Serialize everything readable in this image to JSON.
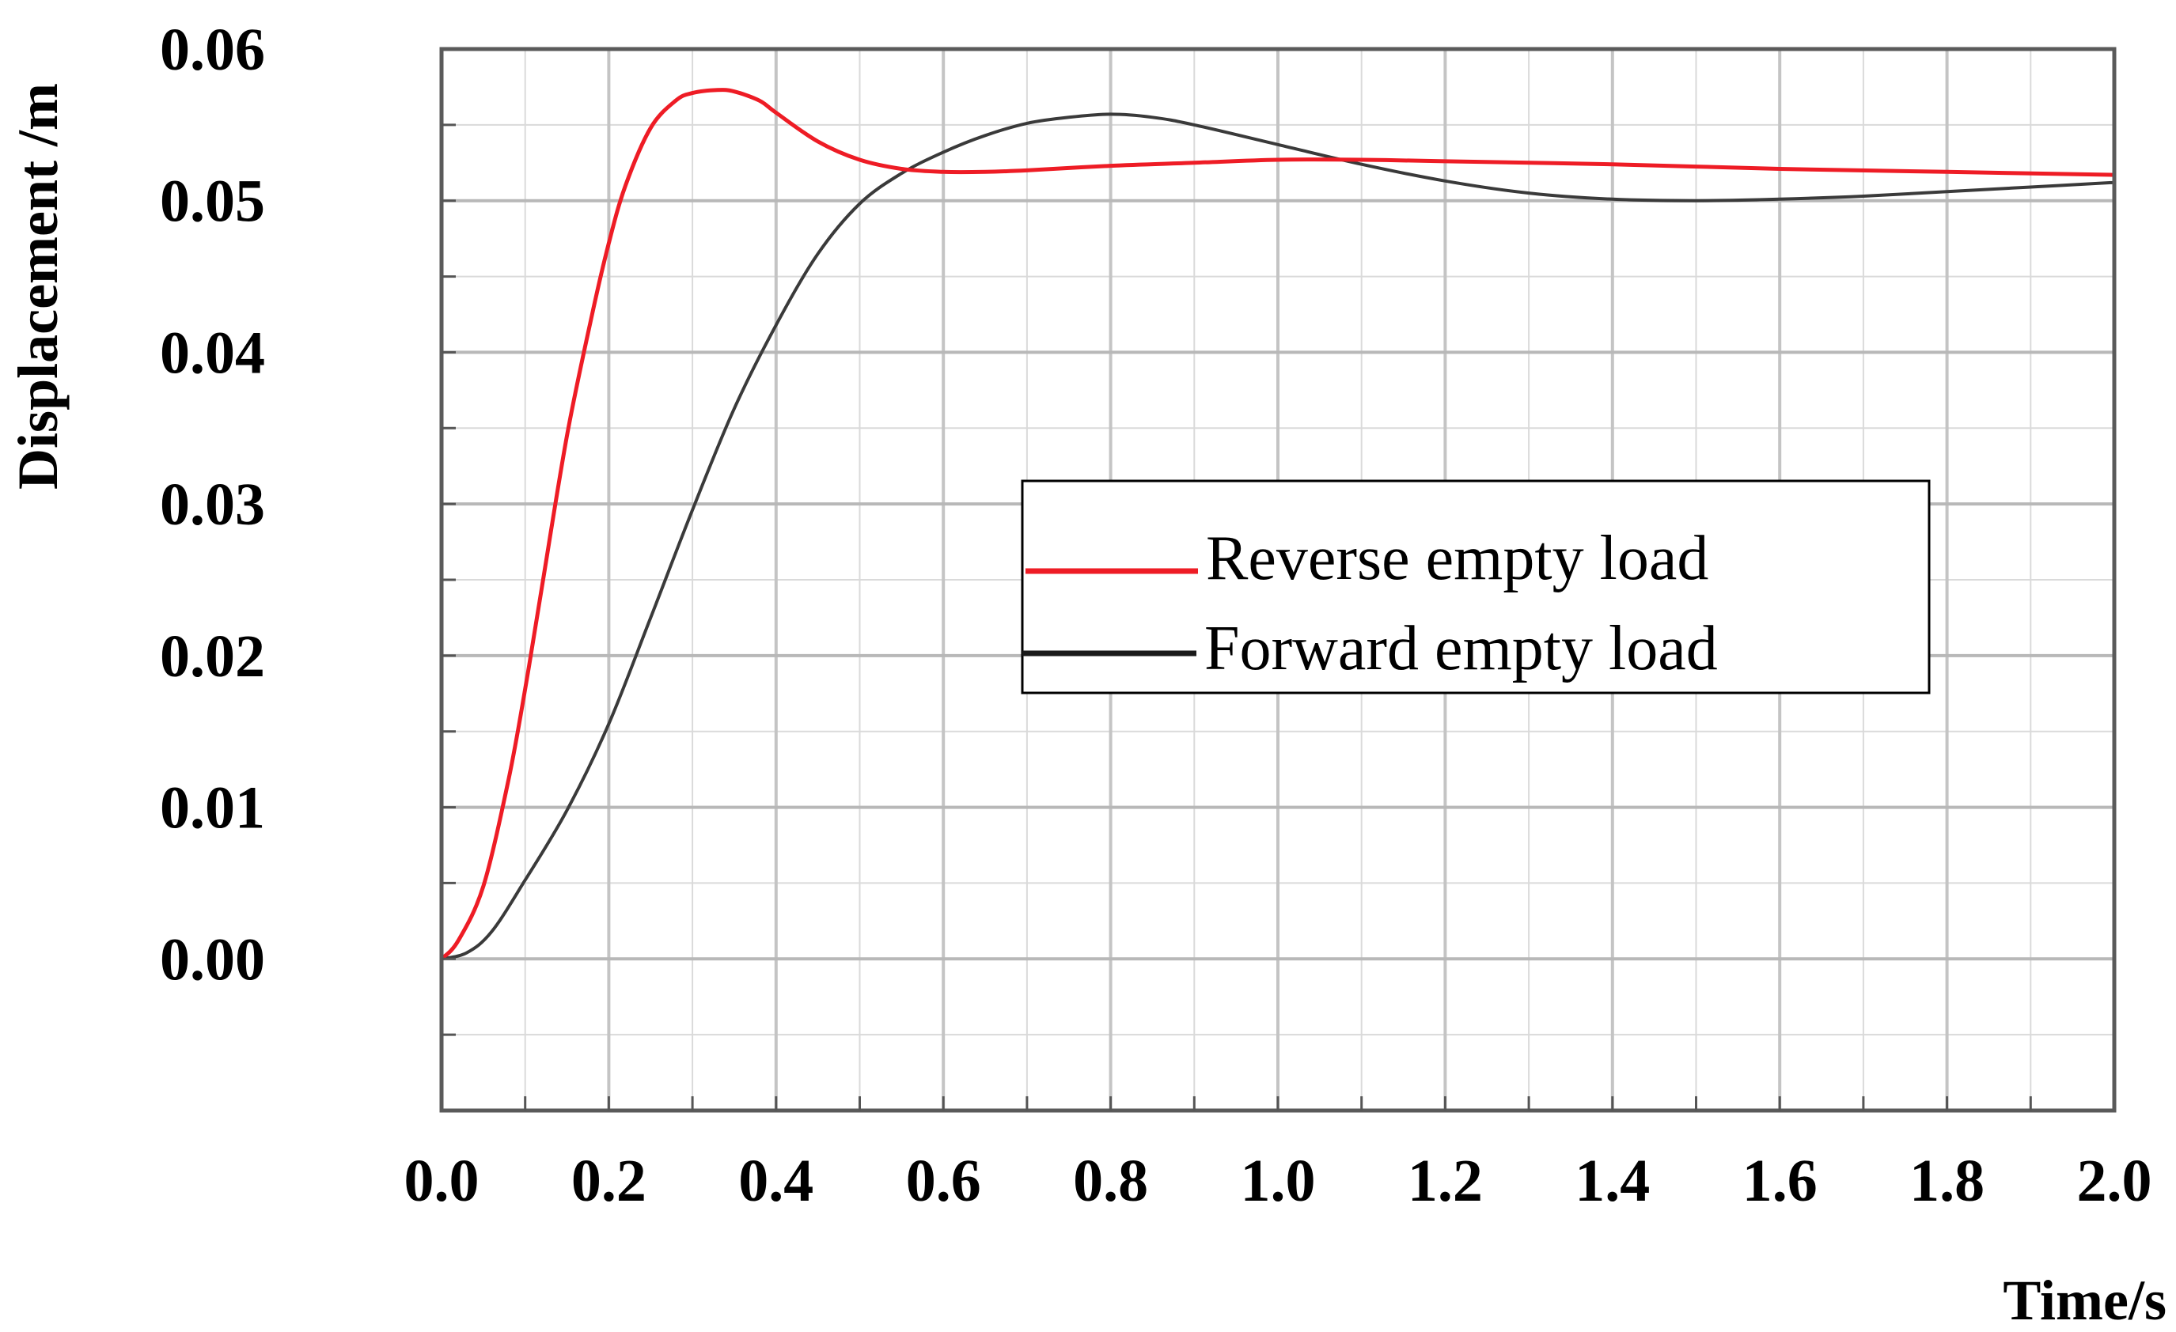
{
  "chart_data": {
    "type": "line",
    "xlabel": "Time/s",
    "ylabel": "Displacement /m",
    "xlim": [
      0.0,
      2.0
    ],
    "ylim": [
      -0.01,
      0.06
    ],
    "x_ticks": [
      "0.0",
      "0.2",
      "0.4",
      "0.6",
      "0.8",
      "1.0",
      "1.2",
      "1.4",
      "1.6",
      "1.8",
      "2.0"
    ],
    "y_ticks": [
      "0.00",
      "0.01",
      "0.02",
      "0.03",
      "0.04",
      "0.05",
      "0.06"
    ],
    "grid": true,
    "legend_position": "center-right",
    "series": [
      {
        "name": "Reverse empty load",
        "color": "#ee1c25",
        "x": [
          0.0,
          0.02,
          0.05,
          0.08,
          0.1,
          0.12,
          0.15,
          0.18,
          0.2,
          0.22,
          0.25,
          0.28,
          0.3,
          0.33,
          0.35,
          0.38,
          0.4,
          0.45,
          0.5,
          0.55,
          0.6,
          0.65,
          0.7,
          0.8,
          0.9,
          1.0,
          1.1,
          1.2,
          1.4,
          1.6,
          1.8,
          2.0
        ],
        "values": [
          0.0,
          0.0012,
          0.0048,
          0.0118,
          0.0178,
          0.0245,
          0.0345,
          0.0425,
          0.0472,
          0.051,
          0.0548,
          0.0566,
          0.0571,
          0.0573,
          0.0572,
          0.0566,
          0.0558,
          0.0539,
          0.0527,
          0.0521,
          0.0519,
          0.0519,
          0.052,
          0.0523,
          0.0525,
          0.0527,
          0.0527,
          0.0526,
          0.0524,
          0.0521,
          0.0519,
          0.0517
        ]
      },
      {
        "name": "Forward empty load",
        "color": "#3a3a3a",
        "x": [
          0.0,
          0.03,
          0.06,
          0.1,
          0.15,
          0.2,
          0.25,
          0.3,
          0.35,
          0.4,
          0.45,
          0.5,
          0.55,
          0.6,
          0.65,
          0.7,
          0.75,
          0.8,
          0.85,
          0.9,
          1.0,
          1.1,
          1.2,
          1.3,
          1.4,
          1.5,
          1.6,
          1.7,
          1.8,
          1.9,
          2.0
        ],
        "values": [
          0.0,
          0.0004,
          0.0018,
          0.0052,
          0.0098,
          0.0155,
          0.0225,
          0.0296,
          0.0363,
          0.0418,
          0.0465,
          0.0498,
          0.0518,
          0.0532,
          0.0543,
          0.0551,
          0.0555,
          0.0557,
          0.0555,
          0.055,
          0.0537,
          0.0524,
          0.0513,
          0.0505,
          0.0501,
          0.05,
          0.0501,
          0.0503,
          0.0506,
          0.0509,
          0.0512
        ]
      }
    ]
  }
}
